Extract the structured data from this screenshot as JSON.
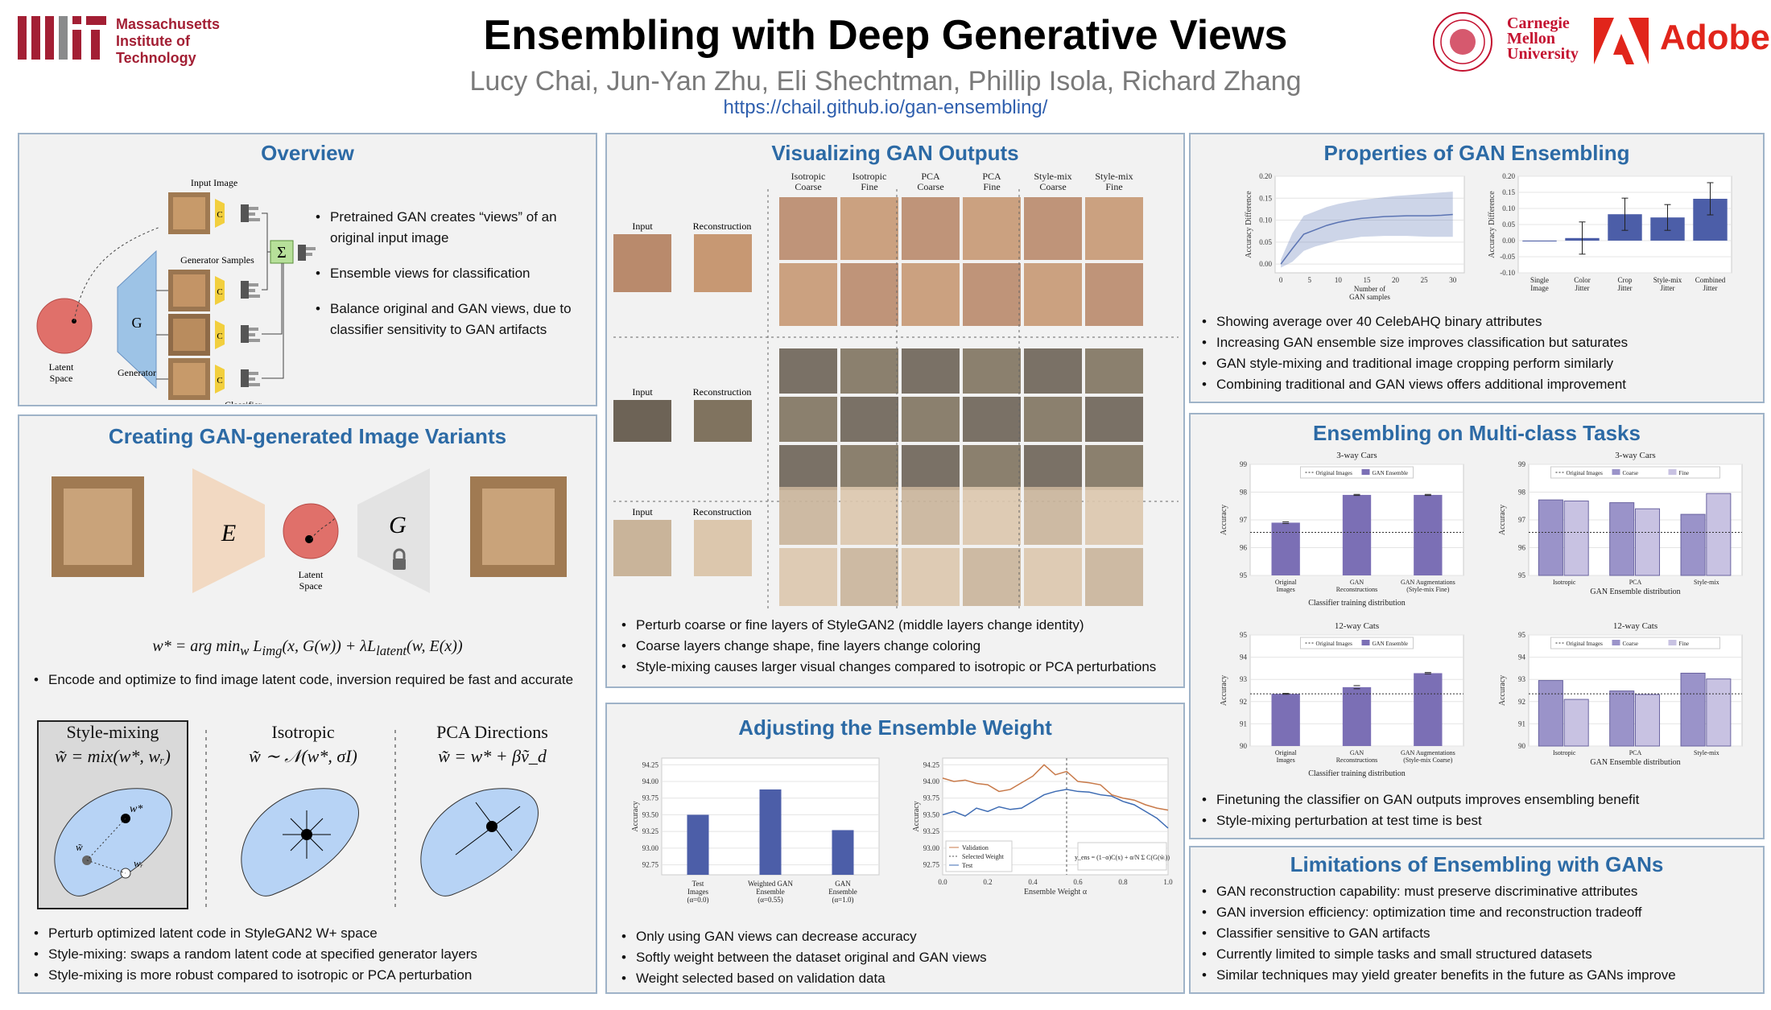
{
  "header": {
    "title": "Ensembling with Deep Generative Views",
    "authors": "Lucy Chai, Jun-Yan Zhu, Eli Shechtman, Phillip Isola, Richard Zhang",
    "url": "https://chail.github.io/gan-ensembling/"
  },
  "logos": {
    "mit": [
      "Massachusetts",
      "Institute of",
      "Technology"
    ],
    "cmu": [
      "Carnegie",
      "Mellon",
      "University"
    ],
    "adobe": "Adobe"
  },
  "overview": {
    "title": "Overview",
    "labels": {
      "input_image": "Input Image",
      "generator_samples": "Generator Samples",
      "latent_space": "Latent\nSpace",
      "generator": "Generator",
      "classifier": "Classifier",
      "g": "G",
      "c": "C",
      "sum": "Σ"
    },
    "bullets": [
      "Pretrained GAN creates “views” of an original input image",
      "Ensemble views for classification",
      "Balance original and GAN views, due to classifier sensitivity to GAN artifacts"
    ]
  },
  "variants": {
    "title": "Creating GAN-generated Image Variants",
    "e": "E",
    "g": "G",
    "latent_space": "Latent\nSpace",
    "bullet": "Encode and optimize to find image latent code, inversion required be fast and accurate",
    "methods": [
      {
        "name": "Style-mixing",
        "formula": "w̃ = mix(w*, wᵣ)"
      },
      {
        "name": "Isotropic",
        "formula": "w̃ ∼ 𝒩(w*, σI)"
      },
      {
        "name": "PCA Directions",
        "formula": "w̃ = w* + βṽ_d"
      }
    ],
    "bullets": [
      "Perturb optimized latent code in StyleGAN2 W+ space",
      "Style-mixing: swaps a random latent code at specified generator layers",
      "Style-mixing is more robust compared to isotropic or PCA perturbation"
    ]
  },
  "visualizing": {
    "title": "Visualizing GAN Outputs",
    "columns": [
      "Isotropic Coarse",
      "Isotropic Fine",
      "PCA Coarse",
      "PCA Fine",
      "Style-mix Coarse",
      "Style-mix Fine"
    ],
    "input": "Input",
    "reconstruction": "Reconstruction",
    "bullets": [
      "Perturb coarse or fine layers of StyleGAN2 (middle layers change identity)",
      "Coarse layers change shape, fine layers change coloring",
      "Style-mixing causes larger visual changes compared to isotropic or PCA perturbations"
    ]
  },
  "adjusting": {
    "title": "Adjusting the Ensemble Weight",
    "bullets": [
      "Only using GAN views can decrease accuracy",
      "Softly weight between the dataset original and GAN views",
      "Weight selected based on validation data"
    ]
  },
  "properties": {
    "title": "Properties of GAN Ensembling",
    "bullets": [
      "Showing average over 40 CelebAHQ binary attributes",
      "Increasing GAN ensemble size improves classification but saturates",
      "GAN style-mixing and traditional image cropping perform similarly",
      "Combining traditional and GAN views offers additional improvement"
    ]
  },
  "multiclass": {
    "title": "Ensembling on Multi-class Tasks",
    "bullets": [
      "Finetuning the classifier on GAN outputs improves ensembling benefit",
      "Style-mixing perturbation at test time is best"
    ]
  },
  "limitations": {
    "title": "Limitations of Ensembling with GANs",
    "bullets": [
      "GAN reconstruction capability: must preserve discriminative attributes",
      "GAN inversion efficiency: optimization time and reconstruction tradeoff",
      "Classifier sensitive to GAN artifacts",
      "Currently limited to simple tasks and small structured datasets",
      "Similar techniques may yield greater benefits in the future as GANs improve"
    ]
  },
  "chart_data": [
    {
      "id": "weight-bar",
      "type": "bar",
      "categories": [
        "Test\nImages\n(α=0.0)",
        "Weighted GAN\nEnsemble\n(α=0.55)",
        "GAN\nEnsemble\n(α=1.0)"
      ],
      "values": [
        93.5,
        93.88,
        93.27
      ],
      "ylabel": "Accuracy",
      "ylim": [
        92.6,
        94.35
      ],
      "yticks": [
        92.75,
        93.0,
        93.25,
        93.5,
        93.75,
        94.0,
        94.25
      ],
      "color": "#4c5ea8"
    },
    {
      "id": "weight-line",
      "type": "line",
      "xlabel": "Ensemble Weight α",
      "ylabel": "Accuracy",
      "xlim": [
        0,
        1
      ],
      "ylim": [
        92.6,
        94.35
      ],
      "xticks": [
        0.0,
        0.2,
        0.4,
        0.6,
        0.8,
        1.0
      ],
      "yticks": [
        92.75,
        93.0,
        93.25,
        93.5,
        93.75,
        94.0,
        94.25
      ],
      "vline": 0.55,
      "legend_position": "lower-left",
      "formula": "y_ens = (1−α)C(x) + α/N Σ C(G(w̃ᵢ))",
      "x": [
        0,
        0.05,
        0.1,
        0.15,
        0.2,
        0.25,
        0.3,
        0.35,
        0.4,
        0.45,
        0.5,
        0.55,
        0.6,
        0.65,
        0.7,
        0.75,
        0.8,
        0.85,
        0.9,
        0.95,
        1.0
      ],
      "series": [
        {
          "name": "Validation",
          "color": "#c87a4a",
          "values": [
            94.05,
            94.0,
            94.02,
            93.97,
            93.95,
            93.85,
            93.88,
            93.98,
            94.08,
            94.25,
            94.1,
            94.15,
            94.0,
            93.98,
            93.95,
            93.8,
            93.75,
            93.72,
            93.65,
            93.6,
            93.57
          ]
        },
        {
          "name": "Selected Weight",
          "color": "#555555",
          "dashed": true
        },
        {
          "name": "Test",
          "color": "#3d6bb3",
          "values": [
            93.5,
            93.55,
            93.48,
            93.6,
            93.55,
            93.62,
            93.58,
            93.6,
            93.7,
            93.8,
            93.85,
            93.88,
            93.85,
            93.84,
            93.8,
            93.78,
            93.7,
            93.65,
            93.55,
            93.45,
            93.3
          ]
        }
      ]
    },
    {
      "id": "ensemble-size",
      "type": "area",
      "xlabel": "Number of\nGAN samples",
      "ylabel": "Accuracy Difference",
      "xlim": [
        -1,
        32
      ],
      "ylim": [
        -0.02,
        0.2
      ],
      "xticks": [
        0,
        5,
        10,
        15,
        20,
        25,
        30
      ],
      "yticks": [
        0.0,
        0.05,
        0.1,
        0.15,
        0.2
      ],
      "color": "#5b74b3",
      "x": [
        0,
        2,
        4,
        6,
        8,
        10,
        12,
        14,
        16,
        18,
        20,
        22,
        24,
        26,
        28,
        30
      ],
      "values": [
        0,
        0.035,
        0.068,
        0.078,
        0.088,
        0.095,
        0.1,
        0.104,
        0.106,
        0.108,
        0.109,
        0.11,
        0.11,
        0.11,
        0.111,
        0.113
      ],
      "upper": [
        0.01,
        0.07,
        0.11,
        0.12,
        0.13,
        0.137,
        0.142,
        0.146,
        0.149,
        0.152,
        0.155,
        0.157,
        0.159,
        0.161,
        0.163,
        0.165
      ],
      "lower": [
        -0.008,
        0.005,
        0.03,
        0.04,
        0.047,
        0.054,
        0.058,
        0.062,
        0.063,
        0.064,
        0.064,
        0.064,
        0.063,
        0.062,
        0.062,
        0.062
      ]
    },
    {
      "id": "augmentation",
      "type": "bar",
      "categories": [
        "Single\nImage",
        "Color\nJitter",
        "Crop\nJitter",
        "Style-mix\nJitter",
        "Combined\nJitter"
      ],
      "values": [
        0.0,
        0.008,
        0.082,
        0.072,
        0.13
      ],
      "errors": [
        0.0,
        0.05,
        0.05,
        0.04,
        0.05
      ],
      "ylabel": "Accuracy Difference",
      "ylim": [
        -0.1,
        0.2
      ],
      "yticks": [
        -0.1,
        -0.05,
        0.0,
        0.05,
        0.1,
        0.15,
        0.2
      ],
      "color": "#4c5ea8"
    },
    {
      "id": "cars-3way-a",
      "type": "bar",
      "title": "3-way Cars",
      "xlabel": "Classifier training distribution",
      "ylabel": "Accuracy",
      "categories": [
        "Original\nImages",
        "GAN\nReconstructions",
        "GAN Augmentations\n(Style-mix Fine)"
      ],
      "values": [
        96.9,
        97.9,
        97.9
      ],
      "errors": [
        0.03,
        0.02,
        0.02
      ],
      "baseline": 96.55,
      "ylim": [
        95,
        99
      ],
      "yticks": [
        95,
        96,
        97,
        98,
        99
      ],
      "legend": [
        "Original Images",
        "GAN Ensemble"
      ],
      "legend_position": "top-center",
      "color": "#7b6fb5"
    },
    {
      "id": "cars-3way-b",
      "type": "bar",
      "title": "3-way Cars",
      "xlabel": "GAN Ensemble distribution",
      "ylabel": "Accuracy",
      "categories": [
        "Isotropic",
        "PCA",
        "Style-mix"
      ],
      "series": [
        {
          "name": "Coarse",
          "values": [
            97.72,
            97.62,
            97.2
          ]
        },
        {
          "name": "Fine",
          "values": [
            97.68,
            97.4,
            97.95
          ]
        }
      ],
      "baseline": 96.55,
      "ylim": [
        95,
        99
      ],
      "yticks": [
        95,
        96,
        97,
        98,
        99
      ],
      "legend": [
        "Original Images",
        "Coarse",
        "Fine"
      ],
      "legend_position": "top-center"
    },
    {
      "id": "cats-12way-a",
      "type": "bar",
      "title": "12-way Cats",
      "xlabel": "Classifier training distribution",
      "ylabel": "Accuracy",
      "categories": [
        "Original\nImages",
        "GAN\nReconstructions",
        "GAN Augmentations\n(Style-mix Coarse)"
      ],
      "values": [
        92.35,
        92.65,
        93.28
      ],
      "errors": [
        0.02,
        0.07,
        0.03
      ],
      "baseline": 92.35,
      "ylim": [
        90,
        95
      ],
      "yticks": [
        90,
        91,
        92,
        93,
        94,
        95
      ],
      "legend": [
        "Original Images",
        "GAN Ensemble"
      ],
      "legend_position": "top-center",
      "color": "#7b6fb5"
    },
    {
      "id": "cats-12way-b",
      "type": "bar",
      "title": "12-way Cats",
      "xlabel": "GAN Ensemble distribution",
      "ylabel": "Accuracy",
      "categories": [
        "Isotropic",
        "PCA",
        "Style-mix"
      ],
      "series": [
        {
          "name": "Coarse",
          "values": [
            92.95,
            92.48,
            93.28
          ]
        },
        {
          "name": "Fine",
          "values": [
            92.1,
            92.32,
            93.02
          ]
        }
      ],
      "baseline": 92.35,
      "ylim": [
        90,
        95
      ],
      "yticks": [
        90,
        91,
        92,
        93,
        94,
        95
      ],
      "legend": [
        "Original Images",
        "Coarse",
        "Fine"
      ],
      "legend_position": "top-center"
    }
  ]
}
